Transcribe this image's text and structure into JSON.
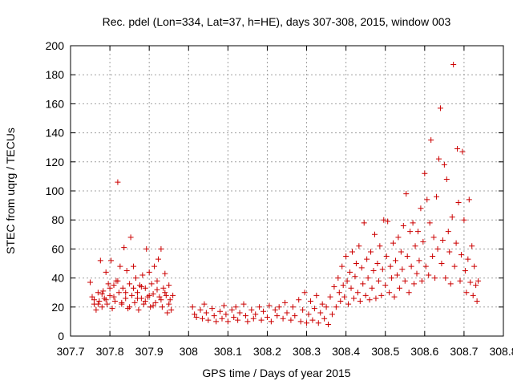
{
  "chart_data": {
    "type": "scatter",
    "title": "Rec. pdel (Lon=334, Lat=37, h=HE), days 307-308, 2015, window 003",
    "xlabel": "GPS time / Days of year 2015",
    "ylabel": "STEC from uqrg / TECUs",
    "xlim": [
      307.7,
      308.8
    ],
    "ylim": [
      0,
      200
    ],
    "xticks": [
      307.7,
      307.8,
      307.9,
      308,
      308.1,
      308.2,
      308.3,
      308.4,
      308.5,
      308.6,
      308.7,
      308.8
    ],
    "xtick_labels": [
      "307.7",
      "307.8",
      "307.9",
      "308",
      "308.1",
      "308.2",
      "308.3",
      "308.4",
      "308.5",
      "308.6",
      "308.7",
      "308.8"
    ],
    "yticks": [
      0,
      20,
      40,
      60,
      80,
      100,
      120,
      140,
      160,
      180,
      200
    ],
    "ytick_labels": [
      "0",
      "20",
      "40",
      "60",
      "80",
      "100",
      "120",
      "140",
      "160",
      "180",
      "200"
    ],
    "grid": true,
    "marker": "plus",
    "color": "#cc0000",
    "series": [
      {
        "name": "",
        "points": [
          [
            307.75,
            37
          ],
          [
            307.755,
            27
          ],
          [
            307.76,
            22
          ],
          [
            307.765,
            18
          ],
          [
            307.77,
            30
          ],
          [
            307.773,
            24
          ],
          [
            307.776,
            52
          ],
          [
            307.78,
            20
          ],
          [
            307.783,
            31
          ],
          [
            307.786,
            26
          ],
          [
            307.79,
            44
          ],
          [
            307.793,
            22
          ],
          [
            307.796,
            36
          ],
          [
            307.8,
            28
          ],
          [
            307.803,
            52
          ],
          [
            307.806,
            19
          ],
          [
            307.81,
            35
          ],
          [
            307.813,
            24
          ],
          [
            307.816,
            38
          ],
          [
            307.82,
            106
          ],
          [
            307.823,
            30
          ],
          [
            307.826,
            48
          ],
          [
            307.83,
            22
          ],
          [
            307.833,
            33
          ],
          [
            307.836,
            61
          ],
          [
            307.84,
            26
          ],
          [
            307.843,
            45
          ],
          [
            307.846,
            19
          ],
          [
            307.85,
            36
          ],
          [
            307.853,
            68
          ],
          [
            307.856,
            28
          ],
          [
            307.86,
            48
          ],
          [
            307.863,
            23
          ],
          [
            307.866,
            40
          ],
          [
            307.87,
            30
          ],
          [
            307.873,
            18
          ],
          [
            307.876,
            35
          ],
          [
            307.88,
            26
          ],
          [
            307.883,
            42
          ],
          [
            307.886,
            22
          ],
          [
            307.89,
            33
          ],
          [
            307.893,
            60
          ],
          [
            307.896,
            27
          ],
          [
            307.9,
            44
          ],
          [
            307.903,
            20
          ],
          [
            307.906,
            36
          ],
          [
            307.91,
            29
          ],
          [
            307.913,
            48
          ],
          [
            307.916,
            23
          ],
          [
            307.92,
            38
          ],
          [
            307.923,
            53
          ],
          [
            307.926,
            27
          ],
          [
            307.93,
            60
          ],
          [
            307.933,
            20
          ],
          [
            307.936,
            33
          ],
          [
            307.94,
            43
          ],
          [
            307.943,
            28
          ],
          [
            307.946,
            16
          ],
          [
            307.95,
            35
          ],
          [
            307.953,
            25
          ],
          [
            307.956,
            18
          ],
          [
            307.96,
            28
          ],
          [
            307.76,
            25
          ],
          [
            307.77,
            22
          ],
          [
            307.78,
            29
          ],
          [
            307.79,
            25
          ],
          [
            307.8,
            33
          ],
          [
            307.81,
            27
          ],
          [
            307.82,
            38
          ],
          [
            307.83,
            23
          ],
          [
            307.84,
            30
          ],
          [
            307.85,
            20
          ],
          [
            307.86,
            33
          ],
          [
            307.87,
            26
          ],
          [
            307.88,
            34
          ],
          [
            307.89,
            24
          ],
          [
            307.9,
            28
          ],
          [
            307.91,
            21
          ],
          [
            307.92,
            32
          ],
          [
            307.93,
            25
          ],
          [
            307.94,
            30
          ],
          [
            307.95,
            22
          ],
          [
            308.01,
            20
          ],
          [
            308.015,
            15
          ],
          [
            308.02,
            13
          ],
          [
            308.03,
            18
          ],
          [
            308.035,
            12
          ],
          [
            308.04,
            22
          ],
          [
            308.045,
            16
          ],
          [
            308.05,
            11
          ],
          [
            308.06,
            19
          ],
          [
            308.065,
            14
          ],
          [
            308.07,
            10
          ],
          [
            308.08,
            17
          ],
          [
            308.085,
            12
          ],
          [
            308.09,
            21
          ],
          [
            308.095,
            15
          ],
          [
            308.1,
            10
          ],
          [
            308.11,
            18
          ],
          [
            308.115,
            13
          ],
          [
            308.12,
            20
          ],
          [
            308.125,
            11
          ],
          [
            308.13,
            16
          ],
          [
            308.14,
            22
          ],
          [
            308.145,
            14
          ],
          [
            308.15,
            10
          ],
          [
            308.16,
            18
          ],
          [
            308.165,
            12
          ],
          [
            308.17,
            15
          ],
          [
            308.18,
            20
          ],
          [
            308.185,
            11
          ],
          [
            308.19,
            17
          ],
          [
            308.2,
            13
          ],
          [
            308.205,
            21
          ],
          [
            308.21,
            10
          ],
          [
            308.22,
            18
          ],
          [
            308.225,
            14
          ],
          [
            308.23,
            20
          ],
          [
            308.24,
            12
          ],
          [
            308.245,
            23
          ],
          [
            308.25,
            16
          ],
          [
            308.26,
            11
          ],
          [
            308.265,
            20
          ],
          [
            308.27,
            14
          ],
          [
            308.28,
            25
          ],
          [
            308.285,
            10
          ],
          [
            308.29,
            18
          ],
          [
            308.295,
            30
          ],
          [
            308.3,
            9
          ],
          [
            308.305,
            15
          ],
          [
            308.31,
            24
          ],
          [
            308.315,
            11
          ],
          [
            308.32,
            19
          ],
          [
            308.325,
            28
          ],
          [
            308.33,
            9
          ],
          [
            308.335,
            16
          ],
          [
            308.34,
            22
          ],
          [
            308.345,
            12
          ],
          [
            308.35,
            20
          ],
          [
            308.355,
            8
          ],
          [
            308.36,
            27
          ],
          [
            308.365,
            15
          ],
          [
            308.37,
            34
          ],
          [
            308.375,
            20
          ],
          [
            308.38,
            40
          ],
          [
            308.383,
            30
          ],
          [
            308.386,
            24
          ],
          [
            308.39,
            48
          ],
          [
            308.393,
            35
          ],
          [
            308.396,
            27
          ],
          [
            308.4,
            55
          ],
          [
            308.403,
            38
          ],
          [
            308.406,
            22
          ],
          [
            308.41,
            44
          ],
          [
            308.413,
            33
          ],
          [
            308.416,
            58
          ],
          [
            308.42,
            26
          ],
          [
            308.423,
            41
          ],
          [
            308.426,
            50
          ],
          [
            308.43,
            30
          ],
          [
            308.433,
            62
          ],
          [
            308.436,
            24
          ],
          [
            308.44,
            47
          ],
          [
            308.443,
            36
          ],
          [
            308.446,
            78
          ],
          [
            308.45,
            28
          ],
          [
            308.453,
            53
          ],
          [
            308.456,
            40
          ],
          [
            308.46,
            25
          ],
          [
            308.463,
            58
          ],
          [
            308.466,
            33
          ],
          [
            308.47,
            45
          ],
          [
            308.473,
            70
          ],
          [
            308.476,
            26
          ],
          [
            308.48,
            50
          ],
          [
            308.483,
            38
          ],
          [
            308.486,
            62
          ],
          [
            308.49,
            28
          ],
          [
            308.493,
            46
          ],
          [
            308.496,
            80
          ],
          [
            308.5,
            35
          ],
          [
            308.503,
            55
          ],
          [
            308.506,
            79
          ],
          [
            308.51,
            30
          ],
          [
            308.513,
            48
          ],
          [
            308.516,
            40
          ],
          [
            308.52,
            64
          ],
          [
            308.523,
            27
          ],
          [
            308.526,
            52
          ],
          [
            308.53,
            42
          ],
          [
            308.533,
            68
          ],
          [
            308.536,
            33
          ],
          [
            308.54,
            58
          ],
          [
            308.543,
            46
          ],
          [
            308.546,
            76
          ],
          [
            308.55,
            38
          ],
          [
            308.553,
            98
          ],
          [
            308.556,
            55
          ],
          [
            308.56,
            30
          ],
          [
            308.563,
            72
          ],
          [
            308.566,
            48
          ],
          [
            308.57,
            78
          ],
          [
            308.573,
            36
          ],
          [
            308.576,
            62
          ],
          [
            308.58,
            43
          ],
          [
            308.583,
            72
          ],
          [
            308.586,
            52
          ],
          [
            308.59,
            88
          ],
          [
            308.593,
            38
          ],
          [
            308.596,
            65
          ],
          [
            308.6,
            112
          ],
          [
            308.603,
            48
          ],
          [
            308.606,
            94
          ],
          [
            308.61,
            42
          ],
          [
            308.613,
            78
          ],
          [
            308.616,
            135
          ],
          [
            308.62,
            55
          ],
          [
            308.623,
            68
          ],
          [
            308.626,
            40
          ],
          [
            308.63,
            96
          ],
          [
            308.633,
            60
          ],
          [
            308.636,
            122
          ],
          [
            308.64,
            157
          ],
          [
            308.643,
            50
          ],
          [
            308.646,
            66
          ],
          [
            308.65,
            118
          ],
          [
            308.653,
            40
          ],
          [
            308.656,
            108
          ],
          [
            308.66,
            72
          ],
          [
            308.663,
            58
          ],
          [
            308.666,
            36
          ],
          [
            308.67,
            82
          ],
          [
            308.673,
            187
          ],
          [
            308.676,
            48
          ],
          [
            308.68,
            64
          ],
          [
            308.683,
            129
          ],
          [
            308.686,
            92
          ],
          [
            308.69,
            38
          ],
          [
            308.693,
            56
          ],
          [
            308.696,
            127
          ],
          [
            308.7,
            80
          ],
          [
            308.703,
            45
          ],
          [
            308.706,
            30
          ],
          [
            308.71,
            53
          ],
          [
            308.713,
            94
          ],
          [
            308.716,
            37
          ],
          [
            308.72,
            62
          ],
          [
            308.723,
            28
          ],
          [
            308.726,
            48
          ],
          [
            308.73,
            35
          ],
          [
            308.733,
            24
          ],
          [
            308.736,
            38
          ]
        ]
      }
    ]
  }
}
